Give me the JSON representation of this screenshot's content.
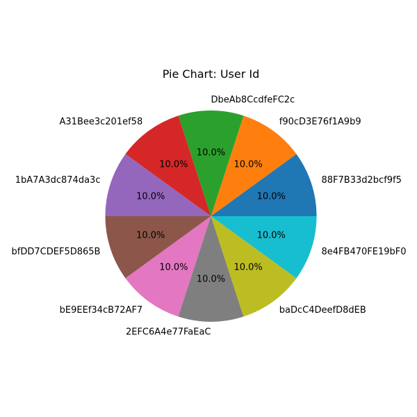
{
  "chart_data": {
    "type": "pie",
    "title": "Pie Chart: User Id",
    "start_angle_deg": 0,
    "direction": "counterclockwise",
    "slices": [
      {
        "label": "88F7B33d2bcf9f5",
        "value": 10.0,
        "pct_label": "10.0%",
        "color": "#1f77b4"
      },
      {
        "label": "f90cD3E76f1A9b9",
        "value": 10.0,
        "pct_label": "10.0%",
        "color": "#ff7f0e"
      },
      {
        "label": "DbeAb8CcdfeFC2c",
        "value": 10.0,
        "pct_label": "10.0%",
        "color": "#2ca02c"
      },
      {
        "label": "A31Bee3c201ef58",
        "value": 10.0,
        "pct_label": "10.0%",
        "color": "#d62728"
      },
      {
        "label": "1bA7A3dc874da3c",
        "value": 10.0,
        "pct_label": "10.0%",
        "color": "#9467bd"
      },
      {
        "label": "bfDD7CDEF5D865B",
        "value": 10.0,
        "pct_label": "10.0%",
        "color": "#8c564b"
      },
      {
        "label": "bE9EEf34cB72AF7",
        "value": 10.0,
        "pct_label": "10.0%",
        "color": "#e377c2"
      },
      {
        "label": "2EFC6A4e77FaEaC",
        "value": 10.0,
        "pct_label": "10.0%",
        "color": "#7f7f7f"
      },
      {
        "label": "baDcC4DeefD8dEB",
        "value": 10.0,
        "pct_label": "10.0%",
        "color": "#bcbd22"
      },
      {
        "label": "8e4FB470FE19bF0",
        "value": 10.0,
        "pct_label": "10.0%",
        "color": "#17becf"
      }
    ]
  }
}
